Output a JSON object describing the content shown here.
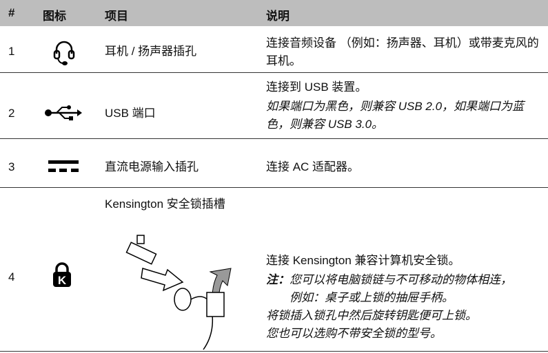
{
  "header": {
    "number": "#",
    "icon": "图标",
    "item": "项目",
    "description": "说明"
  },
  "rows": [
    {
      "number": "1",
      "item": "耳机 / 扬声器插孔",
      "description": [
        "连接音频设备 （例如：扬声器、耳机）或带麦克风的耳机。"
      ]
    },
    {
      "number": "2",
      "item": "USB 端口",
      "description": [
        "连接到 USB 装置。"
      ],
      "note": "如果端口为黑色，则兼容 USB 2.0，如果端口为蓝色，则兼容 USB 3.0。"
    },
    {
      "number": "3",
      "item": "直流电源输入插孔",
      "description": [
        "连接 AC 适配器。"
      ]
    },
    {
      "number": "4",
      "item": "Kensington 安全锁插槽",
      "description": [
        "连接 Kensington 兼容计算机安全锁。"
      ],
      "note_label": "注：",
      "note_lines": [
        "您可以将电脑锁链与不可移动的物体相连，例如：桌子或上锁的抽屉手柄。",
        "将锁插入锁孔中然后旋转钥匙便可上锁。",
        "您也可以选购不带安全锁的型号。"
      ]
    }
  ]
}
